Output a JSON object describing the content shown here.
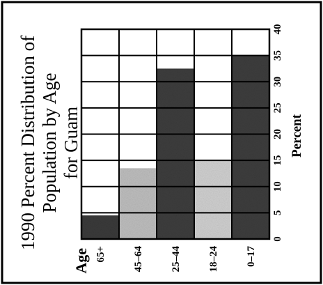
{
  "chart_data": {
    "type": "bar",
    "orientation": "horizontal",
    "title": "1990 Percent Distribution of Population by Age for Guam",
    "title_lines": [
      "1990 Percent Distribution of",
      "Population by Age",
      "for Guam"
    ],
    "category_axis_label": "Age",
    "value_axis_label": "Percent",
    "categories": [
      "65+",
      "45–64",
      "25–44",
      "18–24",
      "0–17"
    ],
    "values": [
      4.5,
      13.5,
      32.5,
      15,
      35
    ],
    "xlim": [
      0,
      40
    ],
    "ticks": [
      0,
      5,
      10,
      15,
      20,
      25,
      30,
      35,
      40
    ],
    "grid": true,
    "rotated": "90deg counter-clockwise",
    "bar_colors": [
      "#3a3a3a",
      "#bdbdbd",
      "#3d3d3d",
      "#cfcfcf",
      "#3d3d3d"
    ]
  }
}
